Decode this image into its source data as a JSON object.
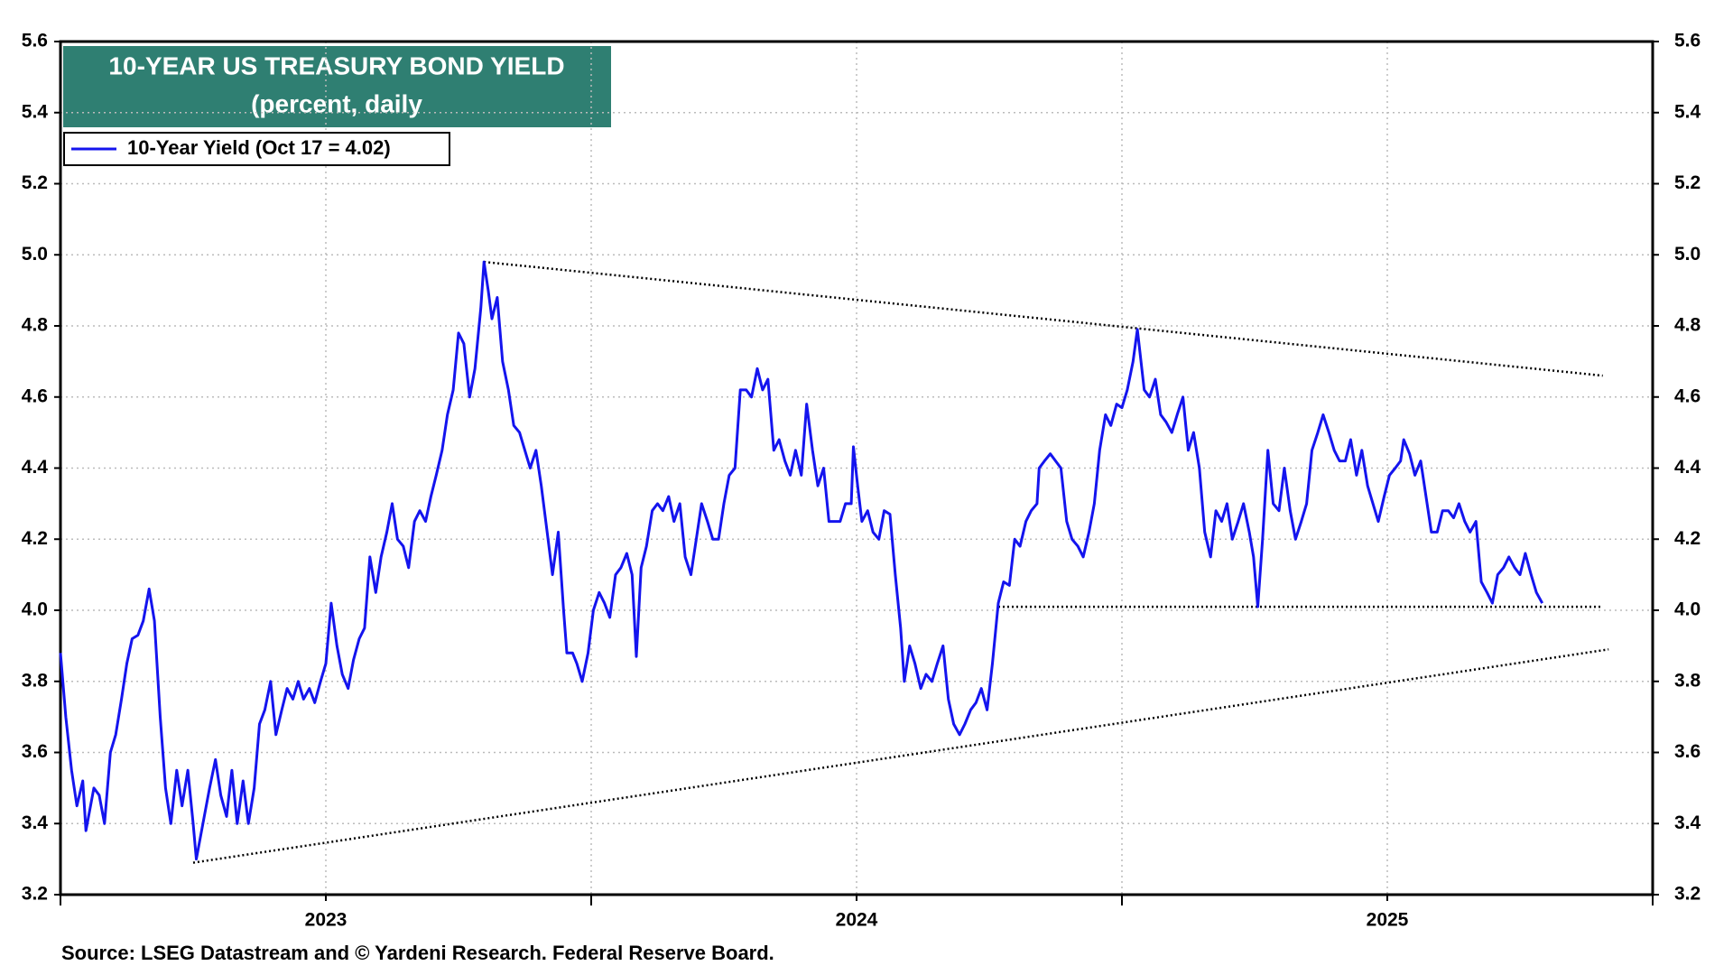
{
  "chart_data": {
    "type": "line",
    "title": "10-YEAR US TREASURY BOND YIELD",
    "subtitle": "(percent, daily",
    "source": "Source: LSEG Datastream and © Yardeni Research. Federal Reserve Board.",
    "xlim": [
      2023,
      2026
    ],
    "xticks": [
      2023,
      2023.5,
      2024,
      2024.5,
      2025,
      2025.5,
      2026
    ],
    "xtick_labels": [
      {
        "value": 2023.5,
        "label": "2023"
      },
      {
        "value": 2024.5,
        "label": "2024"
      },
      {
        "value": 2025.5,
        "label": "2025"
      }
    ],
    "ylim": [
      3.2,
      5.6
    ],
    "yticks": [
      3.2,
      3.4,
      3.6,
      3.8,
      {
        "value": 4,
        "label": "4.0"
      },
      4.2,
      4.4,
      4.6,
      4.8,
      {
        "value": 5,
        "label": "5.0"
      },
      5.2,
      5.4,
      5.6
    ],
    "grid": true,
    "legend": "upper left",
    "x": [
      2023.0,
      2023.01,
      2023.021,
      2023.031,
      2023.042,
      2023.048,
      2023.063,
      2023.073,
      2023.083,
      2023.094,
      2023.104,
      2023.115,
      2023.125,
      2023.135,
      2023.146,
      2023.156,
      2023.167,
      2023.177,
      2023.188,
      2023.198,
      2023.208,
      2023.219,
      2023.229,
      2023.24,
      2023.25,
      2023.256,
      2023.271,
      2023.281,
      2023.292,
      2023.302,
      2023.313,
      2023.323,
      2023.333,
      2023.344,
      2023.354,
      2023.365,
      2023.375,
      2023.385,
      2023.396,
      2023.406,
      2023.417,
      2023.427,
      2023.438,
      2023.448,
      2023.458,
      2023.469,
      2023.479,
      2023.49,
      2023.5,
      2023.51,
      2023.521,
      2023.531,
      2023.542,
      2023.552,
      2023.563,
      2023.573,
      2023.583,
      2023.594,
      2023.604,
      2023.615,
      2023.625,
      2023.635,
      2023.646,
      2023.656,
      2023.667,
      2023.677,
      2023.688,
      2023.698,
      2023.708,
      2023.719,
      2023.729,
      2023.74,
      2023.75,
      2023.76,
      2023.771,
      2023.781,
      2023.792,
      2023.798,
      2023.806,
      2023.813,
      2023.823,
      2023.833,
      2023.844,
      2023.854,
      2023.865,
      2023.875,
      2023.885,
      2023.896,
      2023.906,
      2023.917,
      2023.927,
      2023.938,
      2023.948,
      2023.954,
      2023.965,
      2023.973,
      2023.983,
      2023.994,
      2024.004,
      2024.015,
      2024.025,
      2024.035,
      2024.046,
      2024.056,
      2024.067,
      2024.077,
      2024.085,
      2024.094,
      2024.104,
      2024.115,
      2024.125,
      2024.135,
      2024.146,
      2024.156,
      2024.167,
      2024.177,
      2024.188,
      2024.198,
      2024.208,
      2024.219,
      2024.229,
      2024.24,
      2024.25,
      2024.26,
      2024.271,
      2024.281,
      2024.292,
      2024.302,
      2024.313,
      2024.323,
      2024.333,
      2024.344,
      2024.354,
      2024.365,
      2024.375,
      2024.385,
      2024.396,
      2024.406,
      2024.417,
      2024.427,
      2024.438,
      2024.448,
      2024.458,
      2024.469,
      2024.479,
      2024.49,
      2024.494,
      2024.502,
      2024.51,
      2024.521,
      2024.531,
      2024.542,
      2024.552,
      2024.563,
      2024.573,
      2024.583,
      2024.59,
      2024.6,
      2024.61,
      2024.621,
      2024.631,
      2024.642,
      2024.652,
      2024.663,
      2024.673,
      2024.683,
      2024.694,
      2024.704,
      2024.715,
      2024.725,
      2024.735,
      2024.746,
      2024.756,
      2024.767,
      2024.777,
      2024.788,
      2024.798,
      2024.808,
      2024.819,
      2024.829,
      2024.84,
      2024.844,
      2024.854,
      2024.865,
      2024.875,
      2024.885,
      2024.896,
      2024.906,
      2024.917,
      2024.927,
      2024.938,
      2024.948,
      2024.958,
      2024.969,
      2024.979,
      2024.99,
      2025.0,
      2025.01,
      2025.021,
      2025.029,
      2025.042,
      2025.052,
      2025.063,
      2025.073,
      2025.083,
      2025.094,
      2025.104,
      2025.115,
      2025.125,
      2025.135,
      2025.146,
      2025.156,
      2025.167,
      2025.177,
      2025.188,
      2025.198,
      2025.208,
      2025.219,
      2025.229,
      2025.24,
      2025.248,
      2025.256,
      2025.265,
      2025.275,
      2025.285,
      2025.296,
      2025.306,
      2025.317,
      2025.327,
      2025.338,
      2025.348,
      2025.358,
      2025.369,
      2025.379,
      2025.39,
      2025.4,
      2025.41,
      2025.421,
      2025.431,
      2025.442,
      2025.452,
      2025.463,
      2025.473,
      2025.483,
      2025.494,
      2025.504,
      2025.515,
      2025.525,
      2025.531,
      2025.542,
      2025.552,
      2025.563,
      2025.573,
      2025.583,
      2025.594,
      2025.604,
      2025.615,
      2025.625,
      2025.635,
      2025.646,
      2025.656,
      2025.667,
      2025.677,
      2025.688,
      2025.698,
      2025.708,
      2025.719,
      2025.729,
      2025.74,
      2025.75,
      2025.76,
      2025.771,
      2025.781,
      2025.792
    ],
    "series": [
      {
        "name": "10-Year Yield (Oct 17 = 4.02)",
        "color": "#1414ee",
        "values": [
          3.88,
          3.7,
          3.55,
          3.45,
          3.52,
          3.38,
          3.5,
          3.48,
          3.4,
          3.6,
          3.65,
          3.75,
          3.85,
          3.92,
          3.93,
          3.97,
          4.06,
          3.97,
          3.7,
          3.5,
          3.4,
          3.55,
          3.45,
          3.55,
          3.4,
          3.3,
          3.42,
          3.5,
          3.58,
          3.48,
          3.42,
          3.55,
          3.4,
          3.52,
          3.4,
          3.5,
          3.68,
          3.72,
          3.8,
          3.65,
          3.72,
          3.78,
          3.75,
          3.8,
          3.75,
          3.78,
          3.74,
          3.8,
          3.85,
          4.02,
          3.9,
          3.82,
          3.78,
          3.86,
          3.92,
          3.95,
          4.15,
          4.05,
          4.15,
          4.22,
          4.3,
          4.2,
          4.18,
          4.12,
          4.25,
          4.28,
          4.25,
          4.32,
          4.38,
          4.45,
          4.55,
          4.62,
          4.78,
          4.75,
          4.6,
          4.68,
          4.85,
          4.98,
          4.9,
          4.82,
          4.88,
          4.7,
          4.62,
          4.52,
          4.5,
          4.45,
          4.4,
          4.45,
          4.35,
          4.22,
          4.1,
          4.22,
          4.0,
          3.88,
          3.88,
          3.85,
          3.8,
          3.88,
          4.0,
          4.05,
          4.02,
          3.98,
          4.1,
          4.12,
          4.16,
          4.1,
          3.87,
          4.12,
          4.18,
          4.28,
          4.3,
          4.28,
          4.32,
          4.25,
          4.3,
          4.15,
          4.1,
          4.2,
          4.3,
          4.25,
          4.2,
          4.2,
          4.3,
          4.38,
          4.4,
          4.62,
          4.62,
          4.6,
          4.68,
          4.62,
          4.65,
          4.45,
          4.48,
          4.42,
          4.38,
          4.45,
          4.38,
          4.58,
          4.45,
          4.35,
          4.4,
          4.25,
          4.25,
          4.25,
          4.3,
          4.3,
          4.46,
          4.35,
          4.25,
          4.28,
          4.22,
          4.2,
          4.28,
          4.27,
          4.1,
          3.95,
          3.8,
          3.9,
          3.85,
          3.78,
          3.82,
          3.8,
          3.85,
          3.9,
          3.75,
          3.68,
          3.65,
          3.68,
          3.72,
          3.74,
          3.78,
          3.72,
          3.85,
          4.02,
          4.08,
          4.07,
          4.2,
          4.18,
          4.25,
          4.28,
          4.3,
          4.4,
          4.42,
          4.44,
          4.42,
          4.4,
          4.25,
          4.2,
          4.18,
          4.15,
          4.22,
          4.3,
          4.45,
          4.55,
          4.52,
          4.58,
          4.57,
          4.62,
          4.7,
          4.79,
          4.62,
          4.6,
          4.65,
          4.55,
          4.53,
          4.5,
          4.55,
          4.6,
          4.45,
          4.5,
          4.4,
          4.22,
          4.15,
          4.28,
          4.25,
          4.3,
          4.2,
          4.25,
          4.3,
          4.22,
          4.15,
          4.01,
          4.2,
          4.45,
          4.3,
          4.28,
          4.4,
          4.28,
          4.2,
          4.25,
          4.3,
          4.45,
          4.5,
          4.55,
          4.5,
          4.45,
          4.42,
          4.42,
          4.48,
          4.38,
          4.45,
          4.35,
          4.3,
          4.25,
          4.32,
          4.38,
          4.4,
          4.42,
          4.48,
          4.44,
          4.38,
          4.42,
          4.32,
          4.22,
          4.22,
          4.28,
          4.28,
          4.26,
          4.3,
          4.25,
          4.22,
          4.25,
          4.08,
          4.05,
          4.02,
          4.1,
          4.12,
          4.15,
          4.12,
          4.1,
          4.16,
          4.1,
          4.05,
          4.02
        ]
      }
    ],
    "trendlines": [
      {
        "color": "#000000",
        "x": [
          2023.798,
          2025.906
        ],
        "values": [
          4.98,
          4.66
        ]
      },
      {
        "color": "#000000",
        "x": [
          2023.25,
          2025.917
        ],
        "values": [
          3.29,
          3.89
        ]
      },
      {
        "color": "#000000",
        "x": [
          2024.767,
          2025.906
        ],
        "values": [
          4.01,
          4.01
        ]
      }
    ]
  }
}
